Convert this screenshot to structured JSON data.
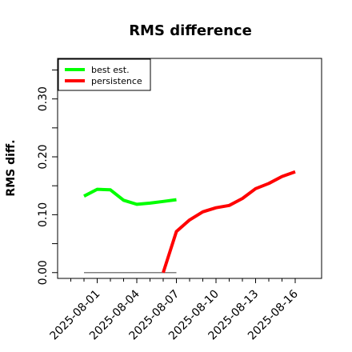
{
  "chart_data": {
    "type": "line",
    "title": "RMS difference",
    "xlabel": "",
    "ylabel": "RMS diff.",
    "x_ticks": [
      "2025-08-01",
      "2025-08-04",
      "2025-08-07",
      "2025-08-10",
      "2025-08-13",
      "2025-08-16"
    ],
    "y_ticks": [
      0.0,
      0.1,
      0.2,
      0.3
    ],
    "y_tick_labels": [
      "0.00",
      "0.10",
      "0.20",
      "0.30"
    ],
    "xlim": [
      "2025-07-29",
      "2025-08-18"
    ],
    "ylim": [
      -0.01,
      0.37
    ],
    "grid": false,
    "legend": "top-left",
    "reference_line": {
      "x": [
        "2025-07-31",
        "2025-08-07"
      ],
      "y": [
        0.0,
        0.0
      ],
      "color": "#808080"
    },
    "series": [
      {
        "name": "best est.",
        "color": "#00ff00",
        "x": [
          "2025-07-31",
          "2025-08-01",
          "2025-08-02",
          "2025-08-03",
          "2025-08-04",
          "2025-08-05",
          "2025-08-06",
          "2025-08-07"
        ],
        "y": [
          0.132,
          0.144,
          0.143,
          0.125,
          0.118,
          0.12,
          0.123,
          0.126
        ]
      },
      {
        "name": "persistence",
        "color": "#ff0000",
        "x": [
          "2025-08-06",
          "2025-08-07",
          "2025-08-08",
          "2025-08-09",
          "2025-08-10",
          "2025-08-11",
          "2025-08-12",
          "2025-08-13",
          "2025-08-14",
          "2025-08-15",
          "2025-08-16"
        ],
        "y": [
          0.0,
          0.071,
          0.091,
          0.105,
          0.112,
          0.116,
          0.128,
          0.145,
          0.154,
          0.166,
          0.174
        ]
      }
    ]
  }
}
